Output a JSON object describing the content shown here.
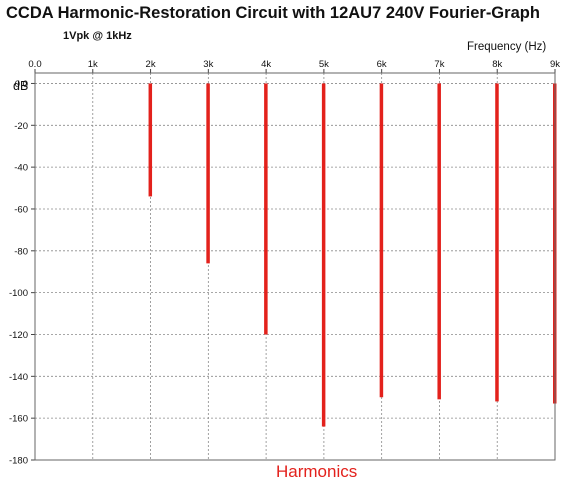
{
  "chart_data": {
    "type": "bar",
    "title": "CCDA Harmonic-Restoration Circuit with 12AU7 240V Fourier-Graph",
    "subtitle": "1Vpk @ 1kHz",
    "xlabel": "Frequency  (Hz)",
    "ylabel": "dB",
    "caption": "Harmonics",
    "x_ticks": [
      "0.0",
      "1k",
      "2k",
      "3k",
      "4k",
      "5k",
      "6k",
      "7k",
      "8k",
      "9k"
    ],
    "y_ticks": [
      "0.0",
      "-20",
      "-40",
      "-60",
      "-80",
      "-100",
      "-120",
      "-140",
      "-160",
      "-180"
    ],
    "xlim": [
      0,
      9000
    ],
    "ylim": [
      -180,
      5
    ],
    "grid": true,
    "bar_color": "#e3211c",
    "categories": [
      "2k",
      "3k",
      "4k",
      "5k",
      "6k",
      "7k",
      "8k",
      "9k"
    ],
    "x": [
      2000,
      3000,
      4000,
      5000,
      6000,
      7000,
      8000,
      9000
    ],
    "values": [
      -54,
      -86,
      -120,
      -164,
      -150,
      -151,
      -152,
      -153
    ]
  }
}
